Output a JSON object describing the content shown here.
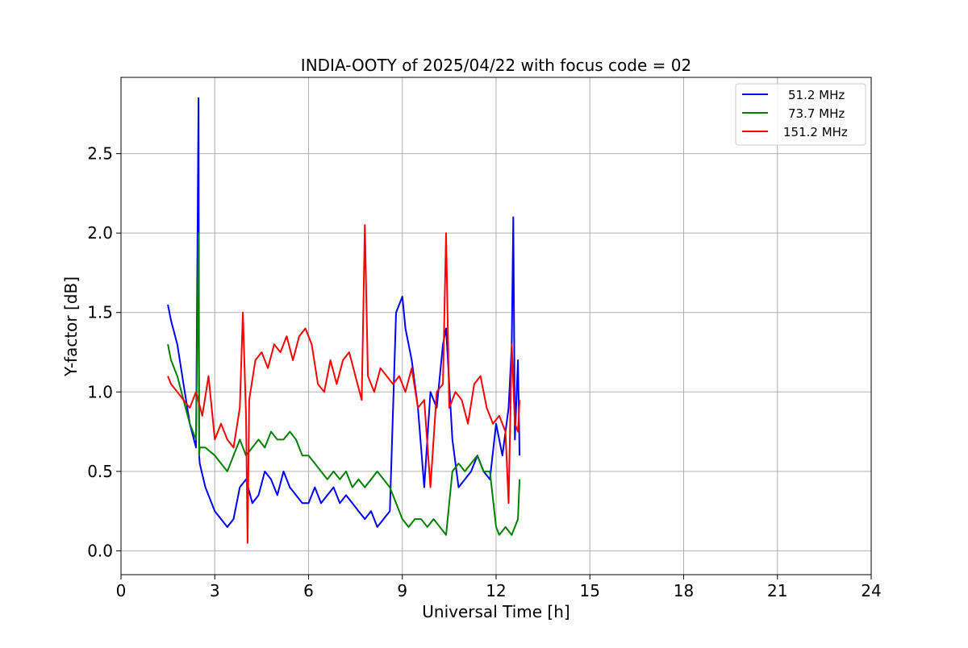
{
  "chart_data": {
    "type": "line",
    "title": "INDIA-OOTY of 2025/04/22 with focus code = 02",
    "xlabel": "Universal Time [h]",
    "ylabel": "Y-factor [dB]",
    "xlim": [
      0,
      24
    ],
    "ylim": [
      -0.15,
      2.98
    ],
    "xticks": [
      0,
      3,
      6,
      9,
      12,
      15,
      18,
      21,
      24
    ],
    "xtick_labels": [
      "0",
      "3",
      "6",
      "9",
      "12",
      "15",
      "18",
      "21",
      "24"
    ],
    "yticks": [
      0.0,
      0.5,
      1.0,
      1.5,
      2.0,
      2.5
    ],
    "ytick_labels": [
      "0.0",
      "0.5",
      "1.0",
      "1.5",
      "2.0",
      "2.5"
    ],
    "grid": true,
    "legend_position": "top-right",
    "series": [
      {
        "name": "51.2 MHz",
        "color": "#0000ff",
        "x": [
          1.5,
          1.6,
          1.8,
          2.0,
          2.2,
          2.4,
          2.48,
          2.5,
          2.52,
          2.7,
          3.0,
          3.2,
          3.4,
          3.6,
          3.8,
          4.0,
          4.2,
          4.4,
          4.6,
          4.8,
          5.0,
          5.2,
          5.4,
          5.6,
          5.8,
          6.0,
          6.2,
          6.4,
          6.6,
          6.8,
          7.0,
          7.2,
          7.4,
          7.6,
          7.8,
          8.0,
          8.2,
          8.4,
          8.6,
          8.8,
          9.0,
          9.1,
          9.3,
          9.5,
          9.7,
          9.9,
          10.1,
          10.3,
          10.4,
          10.6,
          10.8,
          11.0,
          11.2,
          11.4,
          11.6,
          11.8,
          12.0,
          12.2,
          12.4,
          12.5,
          12.55,
          12.6,
          12.7,
          12.75
        ],
        "y": [
          1.55,
          1.45,
          1.3,
          1.05,
          0.8,
          0.65,
          2.85,
          0.6,
          0.55,
          0.4,
          0.25,
          0.2,
          0.15,
          0.2,
          0.4,
          0.45,
          0.3,
          0.35,
          0.5,
          0.45,
          0.35,
          0.5,
          0.4,
          0.35,
          0.3,
          0.3,
          0.4,
          0.3,
          0.35,
          0.4,
          0.3,
          0.35,
          0.3,
          0.25,
          0.2,
          0.25,
          0.15,
          0.2,
          0.25,
          1.5,
          1.6,
          1.4,
          1.2,
          0.9,
          0.4,
          1.0,
          0.9,
          1.3,
          1.4,
          0.7,
          0.4,
          0.45,
          0.5,
          0.6,
          0.5,
          0.45,
          0.8,
          0.6,
          0.9,
          1.3,
          2.1,
          0.7,
          1.2,
          0.6
        ]
      },
      {
        "name": "73.7 MHz",
        "color": "#008000",
        "x": [
          1.5,
          1.6,
          1.8,
          2.0,
          2.2,
          2.4,
          2.48,
          2.5,
          2.52,
          2.7,
          3.0,
          3.2,
          3.4,
          3.6,
          3.8,
          4.0,
          4.2,
          4.4,
          4.6,
          4.8,
          5.0,
          5.2,
          5.4,
          5.6,
          5.8,
          6.0,
          6.2,
          6.4,
          6.6,
          6.8,
          7.0,
          7.2,
          7.4,
          7.6,
          7.8,
          8.0,
          8.2,
          8.4,
          8.6,
          8.8,
          9.0,
          9.2,
          9.4,
          9.6,
          9.8,
          10.0,
          10.2,
          10.4,
          10.6,
          10.8,
          11.0,
          11.2,
          11.4,
          11.6,
          11.8,
          12.0,
          12.1,
          12.3,
          12.5,
          12.7,
          12.75
        ],
        "y": [
          1.3,
          1.2,
          1.1,
          0.95,
          0.8,
          0.7,
          2.0,
          0.6,
          0.65,
          0.65,
          0.6,
          0.55,
          0.5,
          0.6,
          0.7,
          0.6,
          0.65,
          0.7,
          0.65,
          0.75,
          0.7,
          0.7,
          0.75,
          0.7,
          0.6,
          0.6,
          0.55,
          0.5,
          0.45,
          0.5,
          0.45,
          0.5,
          0.4,
          0.45,
          0.4,
          0.45,
          0.5,
          0.45,
          0.4,
          0.3,
          0.2,
          0.15,
          0.2,
          0.2,
          0.15,
          0.2,
          0.15,
          0.1,
          0.5,
          0.55,
          0.5,
          0.55,
          0.6,
          0.5,
          0.5,
          0.15,
          0.1,
          0.15,
          0.1,
          0.2,
          0.45
        ]
      },
      {
        "name": "151.2 MHz",
        "color": "#ff0000",
        "x": [
          1.5,
          1.6,
          1.8,
          2.0,
          2.2,
          2.4,
          2.6,
          2.8,
          3.0,
          3.2,
          3.4,
          3.6,
          3.8,
          3.9,
          4.0,
          4.05,
          4.1,
          4.3,
          4.5,
          4.7,
          4.9,
          5.1,
          5.3,
          5.5,
          5.7,
          5.9,
          6.1,
          6.3,
          6.5,
          6.7,
          6.9,
          7.1,
          7.3,
          7.5,
          7.7,
          7.8,
          7.9,
          8.1,
          8.3,
          8.5,
          8.7,
          8.9,
          9.1,
          9.3,
          9.5,
          9.7,
          9.9,
          10.1,
          10.3,
          10.4,
          10.5,
          10.7,
          10.9,
          11.1,
          11.3,
          11.5,
          11.7,
          11.9,
          12.1,
          12.3,
          12.4,
          12.5,
          12.6,
          12.7,
          12.75
        ],
        "y": [
          1.1,
          1.05,
          1.0,
          0.95,
          0.9,
          1.0,
          0.85,
          1.1,
          0.7,
          0.8,
          0.7,
          0.65,
          0.9,
          1.5,
          0.85,
          0.05,
          0.95,
          1.2,
          1.25,
          1.15,
          1.3,
          1.25,
          1.35,
          1.2,
          1.35,
          1.4,
          1.3,
          1.05,
          1.0,
          1.2,
          1.05,
          1.2,
          1.25,
          1.1,
          0.95,
          2.05,
          1.1,
          1.0,
          1.15,
          1.1,
          1.05,
          1.1,
          1.0,
          1.15,
          0.9,
          0.95,
          0.4,
          1.0,
          1.05,
          2.0,
          0.9,
          1.0,
          0.95,
          0.8,
          1.05,
          1.1,
          0.9,
          0.8,
          0.85,
          0.75,
          0.3,
          1.3,
          0.8,
          0.75,
          0.95
        ]
      }
    ]
  }
}
